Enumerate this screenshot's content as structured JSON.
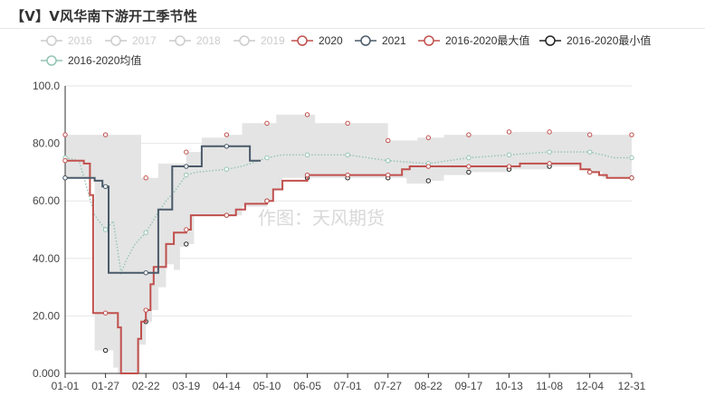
{
  "title": "【V】V风华南下游开工季节性",
  "watermark": "作图：天风期货",
  "chart_data": {
    "type": "line",
    "title": "【V】V风华南下游开工季节性",
    "xlabel": "",
    "ylabel": "",
    "ylim": [
      0,
      100
    ],
    "yticks": [
      "0.000",
      "20.00",
      "40.00",
      "60.00",
      "80.00",
      "100.0"
    ],
    "x_ticks": [
      "01-01",
      "01-27",
      "02-22",
      "03-19",
      "04-14",
      "05-10",
      "06-05",
      "07-01",
      "07-27",
      "08-22",
      "09-17",
      "10-13",
      "11-08",
      "12-04",
      "12-31"
    ],
    "grid": "horizontal",
    "legend_position": "top",
    "band": {
      "lower_series": "2016-2020最小值",
      "upper_series": "2016-2020最大值",
      "color": "#e4e4e4"
    },
    "series": [
      {
        "name": "2016",
        "color": "#cccccc",
        "visible": false,
        "values": []
      },
      {
        "name": "2017",
        "color": "#cccccc",
        "visible": false,
        "values": []
      },
      {
        "name": "2018",
        "color": "#cccccc",
        "visible": false,
        "values": []
      },
      {
        "name": "2019",
        "color": "#cccccc",
        "visible": false,
        "values": []
      },
      {
        "name": "2020",
        "color": "#c0504d",
        "visible": true,
        "style": "step",
        "values": [
          [
            "01-01",
            74
          ],
          [
            "01-10",
            74
          ],
          [
            "01-13",
            73
          ],
          [
            "01-17",
            62
          ],
          [
            "01-19",
            21
          ],
          [
            "01-27",
            21
          ],
          [
            "02-01",
            21
          ],
          [
            "02-04",
            16
          ],
          [
            "02-06",
            0
          ],
          [
            "02-15",
            0
          ],
          [
            "02-17",
            12
          ],
          [
            "02-19",
            18
          ],
          [
            "02-22",
            22
          ],
          [
            "02-25",
            31
          ],
          [
            "02-27",
            37
          ],
          [
            "03-01",
            37
          ],
          [
            "03-06",
            45
          ],
          [
            "03-11",
            49
          ],
          [
            "03-19",
            50
          ],
          [
            "03-22",
            55
          ],
          [
            "04-14",
            55
          ],
          [
            "04-20",
            57
          ],
          [
            "04-26",
            59
          ],
          [
            "05-10",
            60
          ],
          [
            "05-14",
            64
          ],
          [
            "05-20",
            67
          ],
          [
            "05-30",
            67
          ],
          [
            "06-05",
            69
          ],
          [
            "07-01",
            69
          ],
          [
            "07-27",
            69
          ],
          [
            "08-05",
            71
          ],
          [
            "08-10",
            72
          ],
          [
            "09-17",
            72
          ],
          [
            "10-13",
            72
          ],
          [
            "10-20",
            73
          ],
          [
            "11-08",
            73
          ],
          [
            "11-26",
            73
          ],
          [
            "11-28",
            71
          ],
          [
            "12-04",
            70
          ],
          [
            "12-10",
            69
          ],
          [
            "12-15",
            68
          ],
          [
            "12-31",
            68
          ]
        ]
      },
      {
        "name": "2021",
        "color": "#4a5a6a",
        "visible": true,
        "style": "step",
        "values": [
          [
            "01-01",
            68
          ],
          [
            "01-20",
            67
          ],
          [
            "01-25",
            65
          ],
          [
            "01-29",
            35
          ],
          [
            "02-22",
            35
          ],
          [
            "02-25",
            35
          ],
          [
            "03-01",
            57
          ],
          [
            "03-06",
            57
          ],
          [
            "03-10",
            72
          ],
          [
            "03-19",
            72
          ],
          [
            "03-27",
            72
          ],
          [
            "03-29",
            79
          ],
          [
            "04-14",
            79
          ],
          [
            "04-26",
            79
          ],
          [
            "04-29",
            74
          ],
          [
            "05-06",
            74
          ]
        ]
      },
      {
        "name": "2016-2020最大值",
        "color": "#c0504d",
        "visible": true,
        "style": "step",
        "values": [
          [
            "01-01",
            83
          ],
          [
            "01-27",
            83
          ],
          [
            "02-17",
            83
          ],
          [
            "02-19",
            68
          ],
          [
            "02-28",
            68
          ],
          [
            "03-01",
            73
          ],
          [
            "03-19",
            77
          ],
          [
            "03-29",
            82
          ],
          [
            "04-14",
            83
          ],
          [
            "04-24",
            87
          ],
          [
            "05-10",
            87
          ],
          [
            "05-16",
            90
          ],
          [
            "06-05",
            90
          ],
          [
            "06-10",
            87
          ],
          [
            "07-01",
            87
          ],
          [
            "07-27",
            81
          ],
          [
            "08-15",
            82
          ],
          [
            "08-22",
            82
          ],
          [
            "09-01",
            83
          ],
          [
            "09-17",
            83
          ],
          [
            "10-13",
            84
          ],
          [
            "11-08",
            84
          ],
          [
            "12-04",
            83
          ],
          [
            "12-31",
            83
          ]
        ]
      },
      {
        "name": "2016-2020最小值",
        "color": "#222222",
        "visible": true,
        "style": "step",
        "values": [
          [
            "01-01",
            68
          ],
          [
            "01-14",
            68
          ],
          [
            "01-20",
            8
          ],
          [
            "01-27",
            8
          ],
          [
            "02-01",
            2
          ],
          [
            "02-04",
            0
          ],
          [
            "02-15",
            0
          ],
          [
            "02-18",
            10
          ],
          [
            "02-22",
            18
          ],
          [
            "02-26",
            22
          ],
          [
            "03-01",
            30
          ],
          [
            "03-06",
            38
          ],
          [
            "03-11",
            36
          ],
          [
            "03-15",
            44
          ],
          [
            "03-19",
            45
          ],
          [
            "03-24",
            55
          ],
          [
            "04-14",
            55
          ],
          [
            "04-24",
            58
          ],
          [
            "05-10",
            60
          ],
          [
            "05-14",
            64
          ],
          [
            "05-20",
            68
          ],
          [
            "06-05",
            68
          ],
          [
            "07-01",
            68
          ],
          [
            "07-27",
            68
          ],
          [
            "08-08",
            66
          ],
          [
            "08-22",
            67
          ],
          [
            "09-01",
            69
          ],
          [
            "09-17",
            70
          ],
          [
            "10-13",
            71
          ],
          [
            "11-08",
            72
          ],
          [
            "11-26",
            72
          ],
          [
            "11-28",
            71
          ],
          [
            "12-04",
            70
          ],
          [
            "12-12",
            68
          ],
          [
            "12-31",
            68
          ]
        ]
      },
      {
        "name": "2016-2020均值",
        "color": "#93c4b4",
        "visible": true,
        "style": "dotted",
        "values": [
          [
            "01-01",
            75
          ],
          [
            "01-10",
            74
          ],
          [
            "01-20",
            55
          ],
          [
            "01-27",
            50
          ],
          [
            "02-01",
            53
          ],
          [
            "02-06",
            35
          ],
          [
            "02-10",
            40
          ],
          [
            "02-15",
            45
          ],
          [
            "02-22",
            49
          ],
          [
            "03-01",
            56
          ],
          [
            "03-06",
            60
          ],
          [
            "03-11",
            63
          ],
          [
            "03-19",
            69
          ],
          [
            "03-26",
            70
          ],
          [
            "04-14",
            71
          ],
          [
            "04-24",
            72
          ],
          [
            "05-10",
            75
          ],
          [
            "05-20",
            76
          ],
          [
            "06-05",
            76
          ],
          [
            "07-01",
            76
          ],
          [
            "07-27",
            74
          ],
          [
            "08-22",
            73
          ],
          [
            "09-17",
            75
          ],
          [
            "10-13",
            76
          ],
          [
            "11-08",
            77
          ],
          [
            "11-20",
            77
          ],
          [
            "12-04",
            77
          ],
          [
            "12-20",
            75
          ],
          [
            "12-31",
            75
          ]
        ]
      }
    ]
  }
}
